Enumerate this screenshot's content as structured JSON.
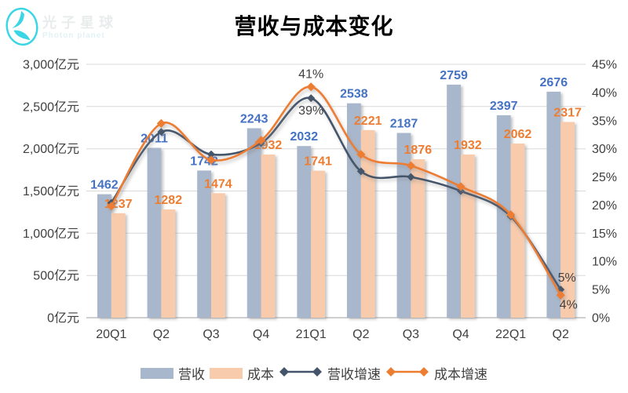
{
  "watermark": {
    "brand": "光子星球",
    "brand_en": "Photon planet"
  },
  "chart_data": {
    "type": "combo-bar-line",
    "title": "营收与成本变化",
    "categories": [
      "20Q1",
      "Q2",
      "Q3",
      "Q4",
      "21Q1",
      "Q2",
      "Q3",
      "Q4",
      "22Q1",
      "Q2"
    ],
    "series": [
      {
        "name": "营收",
        "type": "bar",
        "axis": "left",
        "color": "#a8b7cc",
        "label_color": "#4472c4",
        "values": [
          1462,
          2011,
          1742,
          2243,
          2032,
          2538,
          2187,
          2759,
          2397,
          2676
        ]
      },
      {
        "name": "成本",
        "type": "bar",
        "axis": "left",
        "color": "#f8cbad",
        "label_color": "#ed7d31",
        "values": [
          1237,
          1282,
          1474,
          1932,
          1741,
          2221,
          1876,
          1932,
          2062,
          2317
        ]
      },
      {
        "name": "营收增速",
        "type": "line",
        "axis": "right",
        "color": "#44546a",
        "values": [
          20.4,
          33,
          29,
          31,
          39,
          26,
          25,
          22.5,
          18,
          5
        ]
      },
      {
        "name": "成本增速",
        "type": "line",
        "axis": "right",
        "color": "#ed7d31",
        "values": [
          19.8,
          34.5,
          28,
          31.5,
          41,
          29,
          27,
          23.3,
          18.3,
          4
        ]
      }
    ],
    "left_axis": {
      "unit": "亿元",
      "min": 0,
      "max": 3000,
      "step": 500,
      "tick_labels": [
        "3,000亿元",
        "2,500亿元",
        "2,000亿元",
        "1,500亿元",
        "1,000亿元",
        "500亿元",
        "0亿元"
      ]
    },
    "right_axis": {
      "min": 0,
      "max": 45,
      "step": 5,
      "tick_labels": [
        "45%",
        "40%",
        "35%",
        "30%",
        "25%",
        "20%",
        "15%",
        "10%",
        "5%",
        "0%"
      ]
    },
    "point_labels": [
      {
        "category_index": 4,
        "series": "成本增速",
        "text": "41%",
        "placement": "above"
      },
      {
        "category_index": 4,
        "series": "营收增速",
        "text": "39%",
        "placement": "below"
      },
      {
        "category_index": 9,
        "series": "营收增速",
        "text": "5%",
        "placement": "above-right"
      },
      {
        "category_index": 9,
        "series": "成本增速",
        "text": "4%",
        "placement": "below-right"
      }
    ],
    "legend_position": "bottom",
    "grid": "horizontal",
    "colors": {
      "gridline": "#d9d9d9",
      "axis_baseline": "#bfbfbf",
      "axis_text": "#404040",
      "point_label_text": "#404040",
      "title_text": "#000000",
      "watermark_cyan": "#3ad6e6"
    }
  }
}
